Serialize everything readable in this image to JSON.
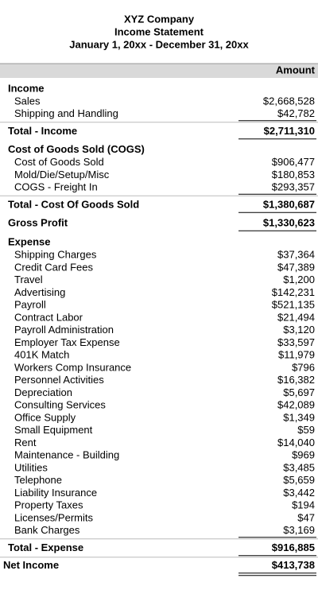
{
  "header": {
    "company": "XYZ Company",
    "title": "Income Statement",
    "period": "January 1, 20xx - December 31, 20xx"
  },
  "column_header": "Amount",
  "income": {
    "heading": "Income",
    "items": [
      {
        "label": "Sales",
        "amount": "$2,668,528"
      },
      {
        "label": "Shipping and Handling",
        "amount": "$42,782"
      }
    ],
    "total": {
      "label": "Total - Income",
      "amount": "$2,711,310"
    }
  },
  "cogs": {
    "heading": "Cost of Goods Sold (COGS)",
    "items": [
      {
        "label": "Cost of Goods Sold",
        "amount": "$906,477"
      },
      {
        "label": "Mold/Die/Setup/Misc",
        "amount": "$180,853"
      },
      {
        "label": "COGS - Freight In",
        "amount": "$293,357"
      }
    ],
    "total": {
      "label": "Total - Cost Of Goods Sold",
      "amount": "$1,380,687"
    }
  },
  "gross_profit": {
    "label": "Gross Profit",
    "amount": "$1,330,623"
  },
  "expense": {
    "heading": "Expense",
    "items": [
      {
        "label": "Shipping Charges",
        "amount": "$37,364"
      },
      {
        "label": "Credit Card Fees",
        "amount": "$47,389"
      },
      {
        "label": "Travel",
        "amount": "$1,200"
      },
      {
        "label": "Advertising",
        "amount": "$142,231"
      },
      {
        "label": "Payroll",
        "amount": "$521,135"
      },
      {
        "label": "Contract Labor",
        "amount": "$21,494"
      },
      {
        "label": "Payroll Administration",
        "amount": "$3,120"
      },
      {
        "label": "Employer Tax Expense",
        "amount": "$33,597"
      },
      {
        "label": "401K Match",
        "amount": "$11,979"
      },
      {
        "label": "Workers Comp Insurance",
        "amount": "$796"
      },
      {
        "label": "Personnel Activities",
        "amount": "$16,382"
      },
      {
        "label": "Depreciation",
        "amount": "$5,697"
      },
      {
        "label": "Consulting Services",
        "amount": "$42,089"
      },
      {
        "label": "Office Supply",
        "amount": "$1,349"
      },
      {
        "label": "Small Equipment",
        "amount": "$59"
      },
      {
        "label": "Rent",
        "amount": "$14,040"
      },
      {
        "label": "Maintenance - Building",
        "amount": "$969"
      },
      {
        "label": "Utilities",
        "amount": "$3,485"
      },
      {
        "label": "Telephone",
        "amount": "$5,659"
      },
      {
        "label": "Liability Insurance",
        "amount": "$3,442"
      },
      {
        "label": "Property Taxes",
        "amount": "$194"
      },
      {
        "label": "Licenses/Permits",
        "amount": "$47"
      },
      {
        "label": "Bank Charges",
        "amount": "$3,169"
      }
    ],
    "total": {
      "label": "Total - Expense",
      "amount": "$916,885"
    }
  },
  "net_income": {
    "label": "Net Income",
    "amount": "$413,738"
  }
}
